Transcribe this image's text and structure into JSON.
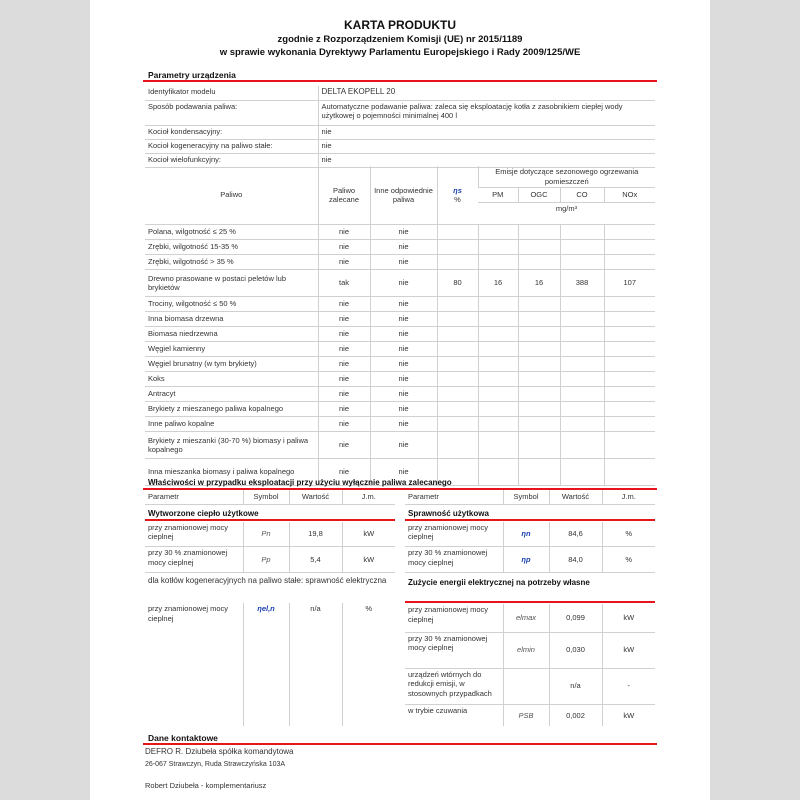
{
  "header": {
    "title": "KARTA PRODUKTU",
    "line2": "zgodnie z Rozporządzeniem Komisji (UE) nr 2015/1189",
    "line3": "w sprawie wykonania Dyrektywy Parlamentu Europejskiego i Rady 2009/125/WE"
  },
  "params": {
    "heading": "Parametry urządzenia",
    "rows": [
      {
        "label": "Identyfikator modelu",
        "value": "DELTA EKOPELL 20"
      },
      {
        "label": "Sposób podawania paliwa:",
        "value": "Automatyczne podawanie paliwa: zaleca się eksploatację kotła z zasobnikiem ciepłej wody użytkowej o pojemności minimalnej 400 l"
      },
      {
        "label": "Kocioł kondensacyjny:",
        "value": "nie"
      },
      {
        "label": "Kocioł kogeneracyjny na paliwo stałe:",
        "value": "nie"
      },
      {
        "label": "Kocioł wielofunkcyjny:",
        "value": "nie"
      }
    ]
  },
  "fuel": {
    "headers": {
      "fuel": "Paliwo",
      "recommended": "Paliwo zalecane",
      "other": "Inne odpowiednie paliwa",
      "eta": "ηs",
      "pct": "%",
      "emissions": "Emisje dotyczące sezonowego ogrzewania pomieszczeń",
      "pm": "PM",
      "ogc": "OGC",
      "co": "CO",
      "nox": "NOx",
      "unit": "mg/m³"
    },
    "rows": [
      {
        "name": "Polana, wilgotność ≤ 25 %",
        "rec": "nie",
        "other": "nie",
        "eta": "",
        "pm": "",
        "ogc": "",
        "co": "",
        "nox": ""
      },
      {
        "name": "Zrębki, wilgotność 15-35 %",
        "rec": "nie",
        "other": "nie",
        "eta": "",
        "pm": "",
        "ogc": "",
        "co": "",
        "nox": ""
      },
      {
        "name": "Zrębki, wilgotność > 35 %",
        "rec": "nie",
        "other": "nie",
        "eta": "",
        "pm": "",
        "ogc": "",
        "co": "",
        "nox": ""
      },
      {
        "name": "Drewno prasowane w postaci peletów lub brykietów",
        "rec": "tak",
        "other": "nie",
        "eta": "80",
        "pm": "16",
        "ogc": "16",
        "co": "388",
        "nox": "107"
      },
      {
        "name": "Trociny, wilgotność ≤ 50 %",
        "rec": "nie",
        "other": "nie",
        "eta": "",
        "pm": "",
        "ogc": "",
        "co": "",
        "nox": ""
      },
      {
        "name": "Inna biomasa drzewna",
        "rec": "nie",
        "other": "nie",
        "eta": "",
        "pm": "",
        "ogc": "",
        "co": "",
        "nox": ""
      },
      {
        "name": "Biomasa niedrzewna",
        "rec": "nie",
        "other": "nie",
        "eta": "",
        "pm": "",
        "ogc": "",
        "co": "",
        "nox": ""
      },
      {
        "name": "Węgiel kamienny",
        "rec": "nie",
        "other": "nie",
        "eta": "",
        "pm": "",
        "ogc": "",
        "co": "",
        "nox": ""
      },
      {
        "name": "Węgiel brunatny (w tym brykiety)",
        "rec": "nie",
        "other": "nie",
        "eta": "",
        "pm": "",
        "ogc": "",
        "co": "",
        "nox": ""
      },
      {
        "name": "Koks",
        "rec": "nie",
        "other": "nie",
        "eta": "",
        "pm": "",
        "ogc": "",
        "co": "",
        "nox": ""
      },
      {
        "name": "Antracyt",
        "rec": "nie",
        "other": "nie",
        "eta": "",
        "pm": "",
        "ogc": "",
        "co": "",
        "nox": ""
      },
      {
        "name": "Brykiety z mieszanego paliwa kopalnego",
        "rec": "nie",
        "other": "nie",
        "eta": "",
        "pm": "",
        "ogc": "",
        "co": "",
        "nox": ""
      },
      {
        "name": "Inne paliwo kopalne",
        "rec": "nie",
        "other": "nie",
        "eta": "",
        "pm": "",
        "ogc": "",
        "co": "",
        "nox": ""
      },
      {
        "name": "Brykiety z mieszanki (30-70 %) biomasy i paliwa kopalnego",
        "rec": "nie",
        "other": "nie",
        "eta": "",
        "pm": "",
        "ogc": "",
        "co": "",
        "nox": ""
      },
      {
        "name": "Inna mieszanka biomasy i paliwa kopalnego",
        "rec": "nie",
        "other": "nie",
        "eta": "",
        "pm": "",
        "ogc": "",
        "co": "",
        "nox": ""
      }
    ]
  },
  "props": {
    "heading": "Właściwości w przypadku eksploatacji przy użyciu wyłącznie paliwa zalecanego",
    "cols": {
      "param": "Parametr",
      "symbol": "Symbol",
      "value": "Wartość",
      "unit": "J.m."
    },
    "left": {
      "sub1": "Wytworzone ciepło użytkowe",
      "rows": [
        {
          "p": "przy znamionowej mocy cieplnej",
          "s": "Pn",
          "v": "19,8",
          "u": "kW"
        },
        {
          "p": "przy 30 % znamionowej mocy cieplnej",
          "s": "Pp",
          "v": "5,4",
          "u": "kW"
        }
      ],
      "sub2": "dla kotłów kogeneracyjnych na paliwo stałe: sprawność elektryczna",
      "rows2": [
        {
          "p": "przy znamionowej mocy cieplnej",
          "s": "ηel,n",
          "v": "n/a",
          "u": "%"
        }
      ]
    },
    "right": {
      "sub1": "Sprawność użytkowa",
      "rows": [
        {
          "p": "przy znamionowej mocy cieplnej",
          "s": "ηn",
          "v": "84,6",
          "u": "%"
        },
        {
          "p": "przy 30 % znamionowej mocy cieplnej",
          "s": "ηp",
          "v": "84,0",
          "u": "%"
        }
      ],
      "sub2": "Zużycie energii elektrycznej na potrzeby własne",
      "rows2": [
        {
          "p": "przy znamionowej mocy cieplnej",
          "s": "elmax",
          "v": "0,099",
          "u": "kW"
        },
        {
          "p": "przy 30 % znamionowej mocy cieplnej",
          "s": "elmin",
          "v": "0,030",
          "u": "kW"
        },
        {
          "p": "urządzeń wtórnych do redukcji emisji, w stosownych przypadkach",
          "s": "",
          "v": "n/a",
          "u": "-"
        },
        {
          "p": "w trybie czuwania",
          "s": "PSB",
          "v": "0,002",
          "u": "kW"
        }
      ]
    }
  },
  "contact": {
    "heading": "Dane kontaktowe",
    "line1": "DEFRO R. Dziubeła spółka komandytowa",
    "line2": "26-067 Strawczyn, Ruda Strawczyńska 103A",
    "line3": "Robert Dziubeła - komplementariusz"
  },
  "colors": {
    "accent": "#e8141c",
    "eta": "#1a3fb0"
  }
}
